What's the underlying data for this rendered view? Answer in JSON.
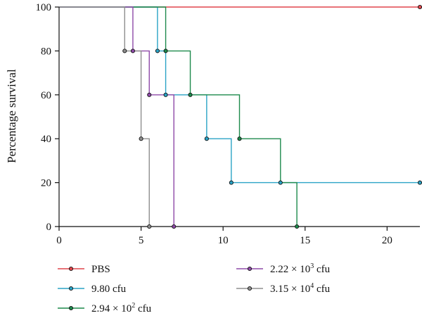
{
  "chart_data": {
    "type": "line",
    "subtype": "kaplan-meier-step",
    "title": "",
    "xlabel": "",
    "ylabel": "Percentage survival",
    "xlim": [
      0,
      22
    ],
    "ylim": [
      0,
      100
    ],
    "xticks": [
      0,
      5,
      10,
      15,
      20
    ],
    "yticks": [
      0,
      20,
      40,
      60,
      80,
      100
    ],
    "grid": false,
    "legend_position": "bottom",
    "series": [
      {
        "name": "PBS",
        "legend": {
          "base": "PBS",
          "sup": "",
          "suffix": ""
        },
        "color": "#e0454b",
        "points": [
          [
            0,
            100
          ],
          [
            22,
            100
          ]
        ]
      },
      {
        "name": "9.80 cfu",
        "legend": {
          "base": "9.80 cfu",
          "sup": "",
          "suffix": ""
        },
        "color": "#2aa3c6",
        "points": [
          [
            0,
            100
          ],
          [
            6,
            100
          ],
          [
            6,
            80
          ],
          [
            6.5,
            80
          ],
          [
            6.5,
            60
          ],
          [
            9,
            60
          ],
          [
            9,
            40
          ],
          [
            10.5,
            40
          ],
          [
            10.5,
            20
          ],
          [
            22,
            20
          ]
        ]
      },
      {
        "name": "2.94 × 10² cfu",
        "legend": {
          "base": "2.94 × 10",
          "sup": "2",
          "suffix": " cfu"
        },
        "color": "#1d8a4c",
        "points": [
          [
            0,
            100
          ],
          [
            6.5,
            100
          ],
          [
            6.5,
            80
          ],
          [
            8,
            80
          ],
          [
            8,
            60
          ],
          [
            11,
            60
          ],
          [
            11,
            40
          ],
          [
            13.5,
            40
          ],
          [
            13.5,
            20
          ],
          [
            14.5,
            20
          ],
          [
            14.5,
            0
          ]
        ]
      },
      {
        "name": "2.22 × 10³ cfu",
        "legend": {
          "base": "2.22 × 10",
          "sup": "3",
          "suffix": " cfu"
        },
        "color": "#8e4aa8",
        "points": [
          [
            0,
            100
          ],
          [
            4.5,
            100
          ],
          [
            4.5,
            80
          ],
          [
            5.5,
            80
          ],
          [
            5.5,
            60
          ],
          [
            7,
            60
          ],
          [
            7,
            0
          ]
        ]
      },
      {
        "name": "3.15 × 10⁴ cfu",
        "legend": {
          "base": "3.15 × 10",
          "sup": "4",
          "suffix": " cfu"
        },
        "color": "#8f8f8f",
        "points": [
          [
            0,
            100
          ],
          [
            4,
            100
          ],
          [
            4,
            80
          ],
          [
            5,
            80
          ],
          [
            5,
            40
          ],
          [
            5.5,
            40
          ],
          [
            5.5,
            0
          ]
        ]
      }
    ],
    "markers": [
      {
        "series": 0,
        "x": 22,
        "y": 100
      },
      {
        "series": 1,
        "x": 6,
        "y": 80
      },
      {
        "series": 1,
        "x": 6.5,
        "y": 60
      },
      {
        "series": 1,
        "x": 9,
        "y": 40
      },
      {
        "series": 1,
        "x": 10.5,
        "y": 20
      },
      {
        "series": 1,
        "x": 13.5,
        "y": 20
      },
      {
        "series": 1,
        "x": 22,
        "y": 20
      },
      {
        "series": 2,
        "x": 6.5,
        "y": 80
      },
      {
        "series": 2,
        "x": 8,
        "y": 60
      },
      {
        "series": 2,
        "x": 11,
        "y": 40
      },
      {
        "series": 2,
        "x": 14.5,
        "y": 0
      },
      {
        "series": 3,
        "x": 4.5,
        "y": 80
      },
      {
        "series": 3,
        "x": 5.5,
        "y": 60
      },
      {
        "series": 3,
        "x": 7,
        "y": 0
      },
      {
        "series": 4,
        "x": 4,
        "y": 80
      },
      {
        "series": 4,
        "x": 5,
        "y": 40
      },
      {
        "series": 4,
        "x": 5.5,
        "y": 0
      }
    ]
  }
}
